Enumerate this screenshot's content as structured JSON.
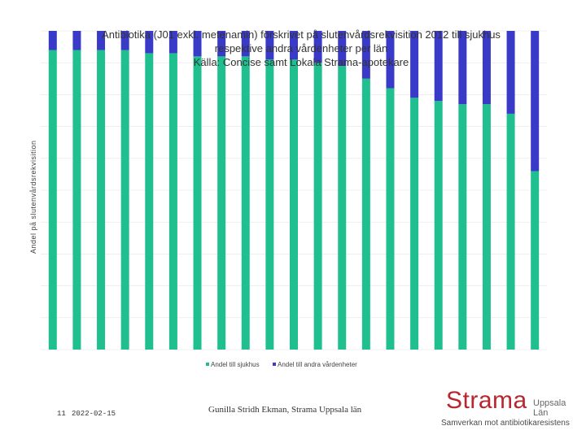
{
  "chart_data": {
    "type": "bar",
    "stacked": true,
    "title_lines": [
      "Antibiotika (J01 exkl. metenamin) förskrivet på slutenvårdsrekvisition 2012 till sjukhus",
      "respektive andra vårdenheter per län",
      "Källa: Concise samt Lokala Strama-apotekare"
    ],
    "ylabel": "Andel på slutenvårdsrekvisition",
    "ylim": [
      0,
      1
    ],
    "grid": true,
    "legend_position": "bottom",
    "series": [
      {
        "name": "Andel till sjukhus",
        "color": "#1fbf8f",
        "values": [
          0.94,
          0.94,
          0.94,
          0.94,
          0.93,
          0.93,
          0.92,
          0.92,
          0.92,
          0.91,
          0.91,
          0.9,
          0.89,
          0.85,
          0.82,
          0.79,
          0.78,
          0.77,
          0.77,
          0.74,
          0.56
        ]
      },
      {
        "name": "Andel till andra vårdenheter",
        "color": "#3a3ac8",
        "values": [
          0.06,
          0.06,
          0.06,
          0.06,
          0.07,
          0.07,
          0.08,
          0.08,
          0.08,
          0.09,
          0.09,
          0.1,
          0.11,
          0.15,
          0.18,
          0.21,
          0.22,
          0.23,
          0.23,
          0.26,
          0.44
        ]
      }
    ]
  },
  "footer": {
    "slide_number": "11",
    "date": "2022-02-15",
    "author": "Gunilla Stridh Ekman, Strama Uppsala län"
  },
  "logo": {
    "name": "Strama",
    "region": "Uppsala Län",
    "tagline": "Samverkan mot antibiotikaresistens",
    "color": "#b8262e"
  }
}
